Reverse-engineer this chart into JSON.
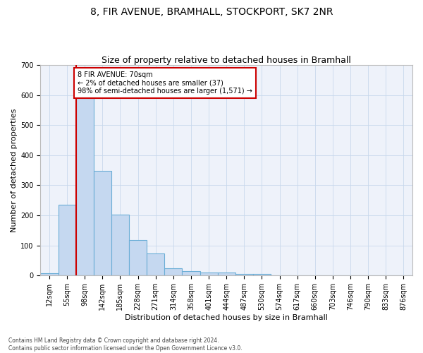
{
  "title": "8, FIR AVENUE, BRAMHALL, STOCKPORT, SK7 2NR",
  "subtitle": "Size of property relative to detached houses in Bramhall",
  "xlabel": "Distribution of detached houses by size in Bramhall",
  "ylabel": "Number of detached properties",
  "categories": [
    "12sqm",
    "55sqm",
    "98sqm",
    "142sqm",
    "185sqm",
    "228sqm",
    "271sqm",
    "314sqm",
    "358sqm",
    "401sqm",
    "444sqm",
    "487sqm",
    "530sqm",
    "574sqm",
    "617sqm",
    "660sqm",
    "703sqm",
    "746sqm",
    "790sqm",
    "833sqm",
    "876sqm"
  ],
  "values": [
    8,
    235,
    590,
    348,
    203,
    117,
    74,
    25,
    15,
    10,
    10,
    5,
    5,
    0,
    0,
    0,
    0,
    0,
    0,
    0,
    0
  ],
  "bar_color": "#c5d8f0",
  "bar_edge_color": "#6baed6",
  "property_line_color": "#cc0000",
  "annotation_text": "8 FIR AVENUE: 70sqm\n← 2% of detached houses are smaller (37)\n98% of semi-detached houses are larger (1,571) →",
  "annotation_box_color": "#ffffff",
  "annotation_box_edge_color": "#cc0000",
  "ylim": [
    0,
    700
  ],
  "yticks": [
    0,
    100,
    200,
    300,
    400,
    500,
    600,
    700
  ],
  "plot_background": "#eef2fa",
  "footer_line1": "Contains HM Land Registry data © Crown copyright and database right 2024.",
  "footer_line2": "Contains public sector information licensed under the Open Government Licence v3.0.",
  "title_fontsize": 10,
  "subtitle_fontsize": 9,
  "axis_label_fontsize": 8,
  "tick_fontsize": 7,
  "annotation_fontsize": 7
}
